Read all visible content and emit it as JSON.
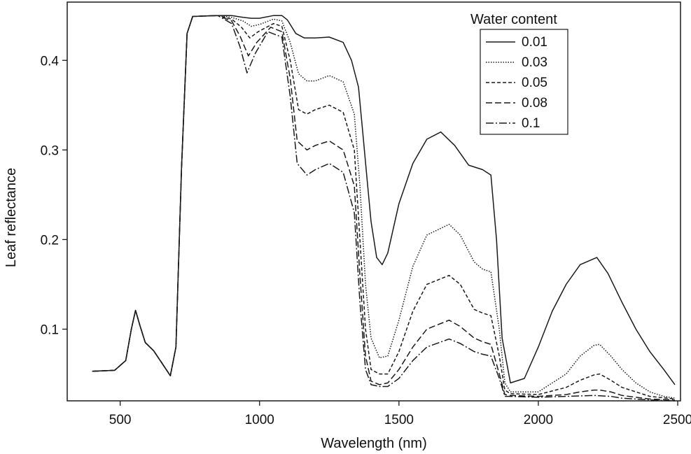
{
  "chart_data": {
    "type": "line",
    "xlabel": "Wavelength (nm)",
    "ylabel": "Leaf reflectance",
    "xlim": [
      310,
      2510
    ],
    "ylim": [
      0.02,
      0.465
    ],
    "xticks": [
      500,
      1000,
      1500,
      2000,
      2500
    ],
    "yticks": [
      0.1,
      0.2,
      0.3,
      0.4
    ],
    "grid": false,
    "legend": {
      "title": "Water content",
      "position": "top-right"
    },
    "series": [
      {
        "name": "0.01",
        "dash": "solid",
        "points": [
          [
            400,
            0.053
          ],
          [
            480,
            0.054
          ],
          [
            520,
            0.065
          ],
          [
            540,
            0.1
          ],
          [
            555,
            0.121
          ],
          [
            570,
            0.105
          ],
          [
            590,
            0.085
          ],
          [
            620,
            0.076
          ],
          [
            650,
            0.062
          ],
          [
            680,
            0.048
          ],
          [
            700,
            0.08
          ],
          [
            720,
            0.28
          ],
          [
            740,
            0.43
          ],
          [
            760,
            0.449
          ],
          [
            850,
            0.45
          ],
          [
            900,
            0.45
          ],
          [
            940,
            0.448
          ],
          [
            970,
            0.447
          ],
          [
            1000,
            0.447
          ],
          [
            1050,
            0.45
          ],
          [
            1080,
            0.45
          ],
          [
            1100,
            0.445
          ],
          [
            1130,
            0.43
          ],
          [
            1160,
            0.425
          ],
          [
            1200,
            0.425
          ],
          [
            1250,
            0.426
          ],
          [
            1300,
            0.42
          ],
          [
            1330,
            0.4
          ],
          [
            1355,
            0.37
          ],
          [
            1370,
            0.32
          ],
          [
            1385,
            0.27
          ],
          [
            1400,
            0.22
          ],
          [
            1420,
            0.18
          ],
          [
            1440,
            0.172
          ],
          [
            1460,
            0.185
          ],
          [
            1500,
            0.24
          ],
          [
            1550,
            0.285
          ],
          [
            1600,
            0.312
          ],
          [
            1650,
            0.32
          ],
          [
            1700,
            0.305
          ],
          [
            1750,
            0.283
          ],
          [
            1800,
            0.278
          ],
          [
            1830,
            0.272
          ],
          [
            1850,
            0.2
          ],
          [
            1870,
            0.09
          ],
          [
            1900,
            0.04
          ],
          [
            1950,
            0.045
          ],
          [
            2000,
            0.08
          ],
          [
            2050,
            0.12
          ],
          [
            2100,
            0.15
          ],
          [
            2150,
            0.172
          ],
          [
            2210,
            0.18
          ],
          [
            2250,
            0.162
          ],
          [
            2300,
            0.13
          ],
          [
            2350,
            0.1
          ],
          [
            2400,
            0.075
          ],
          [
            2450,
            0.055
          ],
          [
            2490,
            0.038
          ]
        ]
      },
      {
        "name": "0.03",
        "dash": "dotted",
        "points": [
          [
            400,
            0.053
          ],
          [
            480,
            0.054
          ],
          [
            520,
            0.065
          ],
          [
            540,
            0.1
          ],
          [
            555,
            0.121
          ],
          [
            570,
            0.105
          ],
          [
            590,
            0.085
          ],
          [
            620,
            0.076
          ],
          [
            650,
            0.062
          ],
          [
            680,
            0.048
          ],
          [
            700,
            0.08
          ],
          [
            720,
            0.28
          ],
          [
            740,
            0.43
          ],
          [
            760,
            0.449
          ],
          [
            850,
            0.45
          ],
          [
            900,
            0.448
          ],
          [
            940,
            0.444
          ],
          [
            970,
            0.438
          ],
          [
            1000,
            0.44
          ],
          [
            1050,
            0.446
          ],
          [
            1080,
            0.444
          ],
          [
            1110,
            0.42
          ],
          [
            1140,
            0.385
          ],
          [
            1170,
            0.377
          ],
          [
            1200,
            0.377
          ],
          [
            1250,
            0.383
          ],
          [
            1300,
            0.376
          ],
          [
            1340,
            0.34
          ],
          [
            1360,
            0.26
          ],
          [
            1380,
            0.15
          ],
          [
            1400,
            0.09
          ],
          [
            1430,
            0.068
          ],
          [
            1460,
            0.07
          ],
          [
            1500,
            0.11
          ],
          [
            1550,
            0.17
          ],
          [
            1600,
            0.205
          ],
          [
            1680,
            0.217
          ],
          [
            1720,
            0.205
          ],
          [
            1770,
            0.175
          ],
          [
            1800,
            0.167
          ],
          [
            1830,
            0.164
          ],
          [
            1860,
            0.1
          ],
          [
            1880,
            0.04
          ],
          [
            1900,
            0.03
          ],
          [
            2000,
            0.03
          ],
          [
            2100,
            0.05
          ],
          [
            2150,
            0.07
          ],
          [
            2200,
            0.082
          ],
          [
            2220,
            0.083
          ],
          [
            2260,
            0.07
          ],
          [
            2300,
            0.055
          ],
          [
            2350,
            0.04
          ],
          [
            2400,
            0.03
          ],
          [
            2450,
            0.025
          ],
          [
            2490,
            0.023
          ]
        ]
      },
      {
        "name": "0.05",
        "dash": "dashed",
        "points": [
          [
            400,
            0.053
          ],
          [
            480,
            0.054
          ],
          [
            520,
            0.065
          ],
          [
            540,
            0.1
          ],
          [
            555,
            0.121
          ],
          [
            570,
            0.105
          ],
          [
            590,
            0.085
          ],
          [
            620,
            0.076
          ],
          [
            650,
            0.062
          ],
          [
            680,
            0.048
          ],
          [
            700,
            0.08
          ],
          [
            720,
            0.28
          ],
          [
            740,
            0.43
          ],
          [
            760,
            0.449
          ],
          [
            850,
            0.45
          ],
          [
            900,
            0.446
          ],
          [
            935,
            0.437
          ],
          [
            965,
            0.425
          ],
          [
            995,
            0.432
          ],
          [
            1050,
            0.441
          ],
          [
            1080,
            0.438
          ],
          [
            1110,
            0.4
          ],
          [
            1140,
            0.345
          ],
          [
            1170,
            0.34
          ],
          [
            1200,
            0.345
          ],
          [
            1250,
            0.35
          ],
          [
            1300,
            0.342
          ],
          [
            1340,
            0.3
          ],
          [
            1360,
            0.2
          ],
          [
            1380,
            0.1
          ],
          [
            1400,
            0.055
          ],
          [
            1430,
            0.05
          ],
          [
            1460,
            0.05
          ],
          [
            1500,
            0.075
          ],
          [
            1550,
            0.12
          ],
          [
            1600,
            0.15
          ],
          [
            1680,
            0.16
          ],
          [
            1720,
            0.15
          ],
          [
            1770,
            0.122
          ],
          [
            1800,
            0.118
          ],
          [
            1830,
            0.115
          ],
          [
            1860,
            0.07
          ],
          [
            1880,
            0.032
          ],
          [
            1900,
            0.028
          ],
          [
            2000,
            0.027
          ],
          [
            2100,
            0.035
          ],
          [
            2150,
            0.043
          ],
          [
            2200,
            0.049
          ],
          [
            2220,
            0.05
          ],
          [
            2260,
            0.043
          ],
          [
            2300,
            0.035
          ],
          [
            2400,
            0.025
          ],
          [
            2490,
            0.022
          ]
        ]
      },
      {
        "name": "0.08",
        "dash": "long-dashed",
        "points": [
          [
            400,
            0.053
          ],
          [
            480,
            0.054
          ],
          [
            520,
            0.065
          ],
          [
            540,
            0.1
          ],
          [
            555,
            0.121
          ],
          [
            570,
            0.105
          ],
          [
            590,
            0.085
          ],
          [
            620,
            0.076
          ],
          [
            650,
            0.062
          ],
          [
            680,
            0.048
          ],
          [
            700,
            0.08
          ],
          [
            720,
            0.28
          ],
          [
            740,
            0.43
          ],
          [
            760,
            0.449
          ],
          [
            850,
            0.45
          ],
          [
            900,
            0.444
          ],
          [
            930,
            0.427
          ],
          [
            960,
            0.405
          ],
          [
            990,
            0.42
          ],
          [
            1040,
            0.437
          ],
          [
            1080,
            0.432
          ],
          [
            1110,
            0.38
          ],
          [
            1135,
            0.31
          ],
          [
            1170,
            0.3
          ],
          [
            1200,
            0.305
          ],
          [
            1250,
            0.31
          ],
          [
            1300,
            0.3
          ],
          [
            1340,
            0.26
          ],
          [
            1360,
            0.16
          ],
          [
            1380,
            0.07
          ],
          [
            1400,
            0.042
          ],
          [
            1430,
            0.038
          ],
          [
            1460,
            0.04
          ],
          [
            1500,
            0.055
          ],
          [
            1550,
            0.08
          ],
          [
            1600,
            0.1
          ],
          [
            1680,
            0.11
          ],
          [
            1720,
            0.103
          ],
          [
            1770,
            0.09
          ],
          [
            1800,
            0.086
          ],
          [
            1830,
            0.083
          ],
          [
            1860,
            0.05
          ],
          [
            1880,
            0.027
          ],
          [
            1900,
            0.026
          ],
          [
            2000,
            0.025
          ],
          [
            2100,
            0.027
          ],
          [
            2150,
            0.03
          ],
          [
            2200,
            0.032
          ],
          [
            2220,
            0.032
          ],
          [
            2260,
            0.03
          ],
          [
            2300,
            0.026
          ],
          [
            2400,
            0.022
          ],
          [
            2490,
            0.021
          ]
        ]
      },
      {
        "name": "0.1",
        "dash": "dash-dot",
        "points": [
          [
            400,
            0.053
          ],
          [
            480,
            0.054
          ],
          [
            520,
            0.065
          ],
          [
            540,
            0.1
          ],
          [
            555,
            0.121
          ],
          [
            570,
            0.105
          ],
          [
            590,
            0.085
          ],
          [
            620,
            0.076
          ],
          [
            650,
            0.062
          ],
          [
            680,
            0.048
          ],
          [
            700,
            0.08
          ],
          [
            720,
            0.28
          ],
          [
            740,
            0.43
          ],
          [
            760,
            0.449
          ],
          [
            850,
            0.45
          ],
          [
            900,
            0.441
          ],
          [
            930,
            0.415
          ],
          [
            955,
            0.386
          ],
          [
            985,
            0.408
          ],
          [
            1030,
            0.432
          ],
          [
            1080,
            0.426
          ],
          [
            1110,
            0.36
          ],
          [
            1135,
            0.285
          ],
          [
            1170,
            0.272
          ],
          [
            1200,
            0.278
          ],
          [
            1250,
            0.285
          ],
          [
            1300,
            0.275
          ],
          [
            1340,
            0.23
          ],
          [
            1360,
            0.13
          ],
          [
            1380,
            0.055
          ],
          [
            1400,
            0.038
          ],
          [
            1430,
            0.036
          ],
          [
            1460,
            0.036
          ],
          [
            1500,
            0.045
          ],
          [
            1550,
            0.065
          ],
          [
            1600,
            0.08
          ],
          [
            1680,
            0.089
          ],
          [
            1720,
            0.084
          ],
          [
            1770,
            0.075
          ],
          [
            1800,
            0.072
          ],
          [
            1830,
            0.07
          ],
          [
            1860,
            0.045
          ],
          [
            1880,
            0.025
          ],
          [
            1900,
            0.025
          ],
          [
            2000,
            0.024
          ],
          [
            2100,
            0.025
          ],
          [
            2200,
            0.026
          ],
          [
            2260,
            0.025
          ],
          [
            2300,
            0.023
          ],
          [
            2400,
            0.021
          ],
          [
            2490,
            0.02
          ]
        ]
      }
    ]
  }
}
